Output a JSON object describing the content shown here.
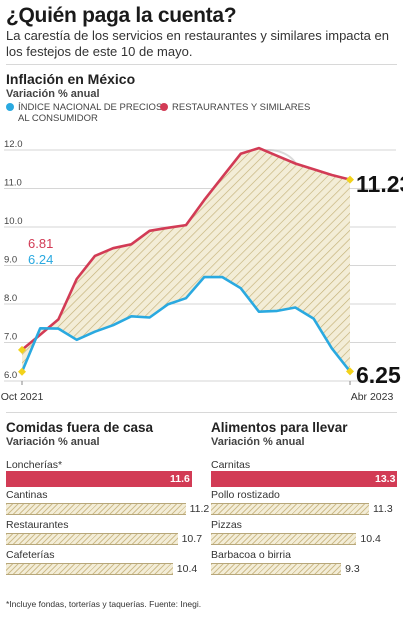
{
  "header": {
    "headline": "¿Quién paga la cuenta?",
    "dek": "La carestía de los servicios en restaurantes y similares impacta en los festejos de este 10 de mayo."
  },
  "colors": {
    "inpc": "#2aa9e0",
    "restaurants": "#d23b55",
    "area": "#f3edd7",
    "hatch": "#b0964f",
    "marker": "#f2d21b"
  },
  "chart_data": [
    {
      "type": "line",
      "title": "Inflación en México",
      "subtitle": "Variación % anual",
      "legend": [
        "ÍNDICE NACIONAL DE PRECIOS AL CONSUMIDOR",
        "RESTAURANTES Y SIMILARES"
      ],
      "x_start_label": "Oct 2021",
      "x_end_label": "Abr 2023",
      "x": [
        "Oct 2021",
        "Nov 2021",
        "Dic 2021",
        "Ene 2022",
        "Feb 2022",
        "Mar 2022",
        "Abr 2022",
        "May 2022",
        "Jun 2022",
        "Jul 2022",
        "Ago 2022",
        "Sep 2022",
        "Oct 2022",
        "Nov 2022",
        "Dic 2022",
        "Ene 2023",
        "Feb 2023",
        "Mar 2023",
        "Abr 2023"
      ],
      "yticks": [
        "6.0",
        "7.0",
        "8.0",
        "9.0",
        "10.0",
        "11.0",
        "12.0"
      ],
      "ylim": [
        6.0,
        12.0
      ],
      "grid": true,
      "series": [
        {
          "name": "ÍNDICE NACIONAL DE PRECIOS AL CONSUMIDOR",
          "values": [
            6.24,
            7.37,
            7.36,
            7.07,
            7.28,
            7.45,
            7.68,
            7.65,
            7.99,
            8.15,
            8.7,
            8.7,
            8.41,
            7.8,
            7.82,
            7.91,
            7.62,
            6.85,
            6.25
          ]
        },
        {
          "name": "RESTAURANTES Y SIMILARES",
          "values": [
            6.81,
            7.2,
            7.6,
            8.65,
            9.25,
            9.45,
            9.55,
            9.9,
            9.98,
            10.05,
            10.7,
            11.3,
            11.9,
            12.05,
            11.85,
            11.65,
            11.5,
            11.35,
            11.23
          ]
        }
      ],
      "start_labels": [
        "6.81",
        "6.24"
      ],
      "end_labels": [
        "11.23",
        "6.25"
      ]
    },
    {
      "type": "bar",
      "title": "Comidas fuera de casa",
      "subtitle": "Variación % anual",
      "categories": [
        "Loncherías*",
        "Cantinas",
        "Restaurantes",
        "Cafeterías"
      ],
      "values": [
        11.6,
        11.2,
        10.7,
        10.4
      ],
      "value_labels": [
        "11.6",
        "11.2",
        "10.7",
        "10.4"
      ],
      "highlight": 0
    },
    {
      "type": "bar",
      "title": "Alimentos para llevar",
      "subtitle": "Variación % anual",
      "categories": [
        "Carnitas",
        "Pollo rostizado",
        "Pizzas",
        "Barbacoa o birria"
      ],
      "values": [
        13.3,
        11.3,
        10.4,
        9.3
      ],
      "value_labels": [
        "13.3",
        "11.3",
        "10.4",
        "9.3"
      ],
      "highlight": 0
    }
  ],
  "footnote": "*Incluye fondas, torterías y taquerías. Fuente: Inegi."
}
